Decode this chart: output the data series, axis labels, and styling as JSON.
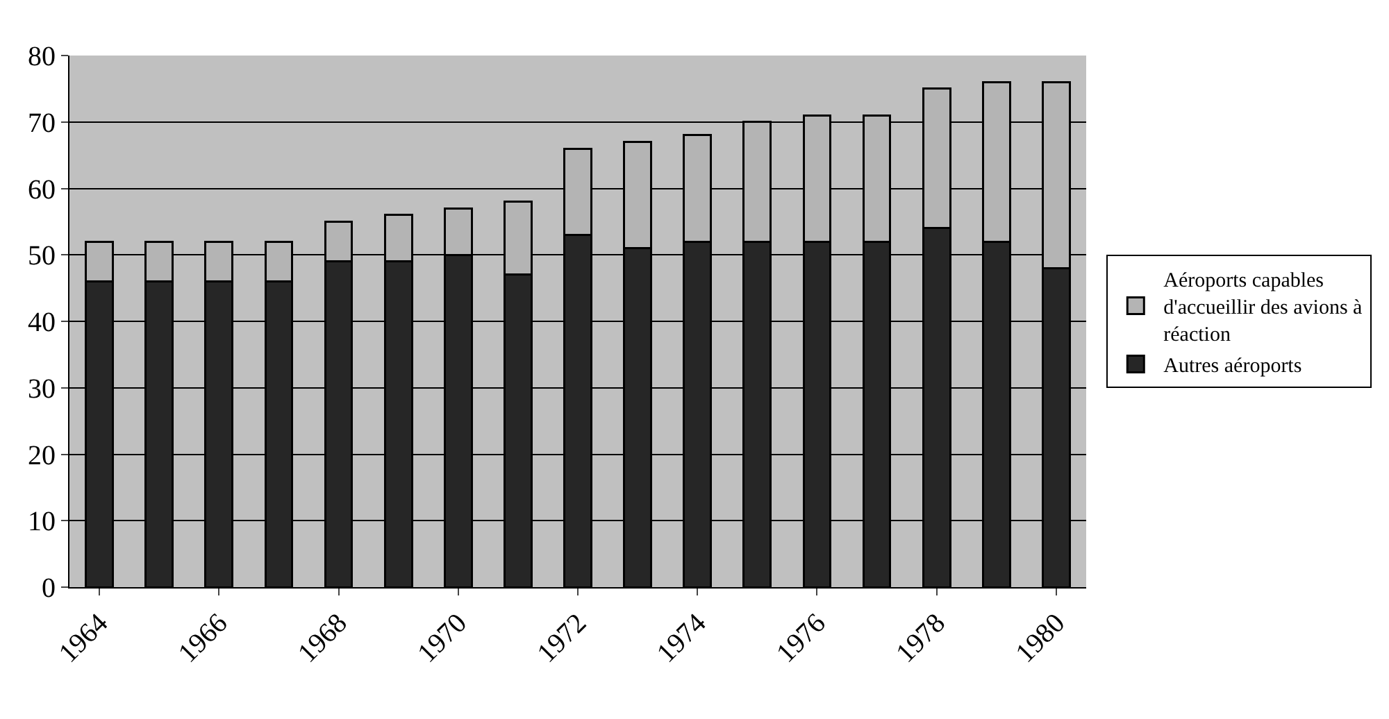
{
  "chart_data": {
    "type": "bar",
    "stacked": true,
    "categories": [
      "1964",
      null,
      "1966",
      null,
      "1968",
      null,
      "1970",
      null,
      "1972",
      null,
      "1974",
      null,
      "1976",
      null,
      "1978",
      null,
      "1980"
    ],
    "series": [
      {
        "name": "Autres aéroports",
        "color": "#262626",
        "values": [
          46,
          46,
          46,
          46,
          49,
          49,
          50,
          47,
          53,
          51,
          52,
          52,
          52,
          52,
          54,
          52,
          48
        ]
      },
      {
        "name": "Aéroports capables d'accueillir des avions à réaction",
        "color": "#b4b4b4",
        "values": [
          6,
          6,
          6,
          6,
          6,
          7,
          7,
          11,
          13,
          16,
          16,
          18,
          19,
          19,
          21,
          24,
          28
        ]
      }
    ],
    "ylim": [
      0,
      80
    ],
    "yticks": [
      0,
      10,
      20,
      30,
      40,
      50,
      60,
      70,
      80
    ],
    "grid": "y",
    "legend": "right"
  }
}
